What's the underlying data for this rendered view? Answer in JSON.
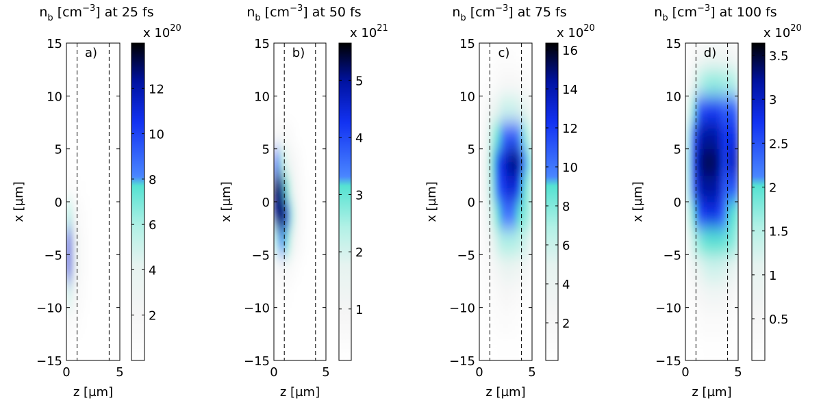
{
  "colormap": [
    [
      0,
      "#ffffff"
    ],
    [
      0.15,
      "#f5f5f5"
    ],
    [
      0.3,
      "#e6f3f0"
    ],
    [
      0.42,
      "#b2f1e6"
    ],
    [
      0.55,
      "#55e2d2"
    ],
    [
      0.58,
      "#4a86ff"
    ],
    [
      0.75,
      "#1232f2"
    ],
    [
      0.88,
      "#0012a0"
    ],
    [
      1,
      "#000000"
    ]
  ],
  "chart_data": [
    {
      "type": "heatmap",
      "title_parts": [
        "n",
        "b",
        " [cm",
        "−3",
        "] at 25 fs"
      ],
      "panel_label": "a)",
      "multiplier": {
        "base": "x 10",
        "exp": "20"
      },
      "xlabel": "z [µm]",
      "ylabel": "x [µm]",
      "xlim": [
        0,
        5
      ],
      "xticks": [
        0,
        5
      ],
      "ylim": [
        -15,
        15
      ],
      "yticks": [
        {
          "value": -15,
          "label": "−15"
        },
        {
          "value": -10,
          "label": "−10"
        },
        {
          "value": -5,
          "label": "−5"
        },
        0,
        5,
        10,
        15
      ],
      "vlines": [
        1,
        4
      ],
      "x": [
        0.25,
        0.75,
        1.25,
        1.75,
        2.25,
        2.75,
        3.25,
        3.75,
        4.25,
        4.75
      ],
      "y": [
        -13.75,
        -11.25,
        -8.75,
        -6.25,
        -3.75,
        -1.25,
        1.25,
        3.75,
        6.25,
        8.75,
        11.25,
        13.75
      ],
      "values": [
        [
          0.3,
          0.2,
          0.1,
          0,
          0,
          0,
          0,
          0,
          0,
          0
        ],
        [
          1.5,
          0.8,
          0.4,
          0.2,
          0.1,
          0,
          0,
          0,
          0,
          0
        ],
        [
          5,
          2,
          1,
          0.5,
          0.2,
          0.1,
          0,
          0,
          0,
          0
        ],
        [
          11,
          3.5,
          1.5,
          0.6,
          0.3,
          0.1,
          0,
          0,
          0,
          0
        ],
        [
          11,
          3.5,
          1.5,
          0.6,
          0.3,
          0.1,
          0,
          0,
          0,
          0
        ],
        [
          6,
          2,
          1,
          0.4,
          0.2,
          0.1,
          0,
          0,
          0,
          0
        ],
        [
          1,
          0.6,
          0.3,
          0.2,
          0.1,
          0,
          0,
          0,
          0,
          0
        ],
        [
          0.3,
          0.2,
          0.1,
          0,
          0,
          0,
          0,
          0,
          0,
          0
        ],
        [
          0,
          0,
          0,
          0,
          0,
          0,
          0,
          0,
          0,
          0
        ],
        [
          0,
          0,
          0,
          0,
          0,
          0,
          0,
          0,
          0,
          0
        ],
        [
          0,
          0,
          0,
          0,
          0,
          0,
          0,
          0,
          0,
          0
        ],
        [
          0,
          0,
          0,
          0,
          0,
          0,
          0,
          0,
          0,
          0
        ]
      ],
      "clim": [
        0,
        14
      ],
      "cticks": [
        2,
        4,
        6,
        8,
        10,
        12
      ]
    },
    {
      "type": "heatmap",
      "title_parts": [
        "n",
        "b",
        " [cm",
        "−3",
        "] at 50 fs"
      ],
      "panel_label": "b)",
      "multiplier": {
        "base": "x 10",
        "exp": "21"
      },
      "xlabel": "z [µm]",
      "ylabel": "x [µm]",
      "xlim": [
        0,
        5
      ],
      "xticks": [
        0,
        5
      ],
      "ylim": [
        -15,
        15
      ],
      "yticks": [
        {
          "value": -15,
          "label": "−15"
        },
        {
          "value": -10,
          "label": "−10"
        },
        {
          "value": -5,
          "label": "−5"
        },
        0,
        5,
        10,
        15
      ],
      "vlines": [
        1,
        4
      ],
      "x": [
        0.25,
        0.75,
        1.25,
        1.75,
        2.25,
        2.75,
        3.25,
        3.75,
        4.25,
        4.75
      ],
      "y": [
        -13.75,
        -11.25,
        -8.75,
        -6.25,
        -3.75,
        -1.25,
        1.25,
        3.75,
        6.25,
        8.75,
        11.25,
        13.75
      ],
      "values": [
        [
          0,
          0,
          0,
          0,
          0,
          0,
          0,
          0,
          0,
          0
        ],
        [
          0.1,
          0.1,
          0.1,
          0,
          0,
          0,
          0,
          0,
          0,
          0
        ],
        [
          0.3,
          0.3,
          0.3,
          0.2,
          0.1,
          0,
          0,
          0,
          0,
          0
        ],
        [
          0.8,
          0.8,
          0.7,
          0.5,
          0.3,
          0.2,
          0.1,
          0,
          0,
          0
        ],
        [
          2.5,
          3.5,
          3,
          1.5,
          0.8,
          0.4,
          0.2,
          0.1,
          0,
          0
        ],
        [
          5,
          5.5,
          4.5,
          2.5,
          1,
          0.5,
          0.2,
          0.1,
          0,
          0
        ],
        [
          5.5,
          5,
          3,
          1.5,
          0.8,
          0.4,
          0.2,
          0.1,
          0,
          0
        ],
        [
          4,
          2.5,
          1.5,
          1,
          0.6,
          0.3,
          0.1,
          0,
          0,
          0
        ],
        [
          0.8,
          0.7,
          0.6,
          0.4,
          0.2,
          0.1,
          0,
          0,
          0,
          0
        ],
        [
          0.2,
          0.2,
          0.1,
          0,
          0,
          0,
          0,
          0,
          0,
          0
        ],
        [
          0,
          0,
          0,
          0,
          0,
          0,
          0,
          0,
          0,
          0
        ],
        [
          0,
          0,
          0,
          0,
          0,
          0,
          0,
          0,
          0,
          0
        ]
      ],
      "clim": [
        0.1,
        5.65
      ],
      "cticks": [
        1,
        2,
        3,
        4,
        5
      ]
    },
    {
      "type": "heatmap",
      "title_parts": [
        "n",
        "b",
        " [cm",
        "−3",
        "] at 75 fs"
      ],
      "panel_label": "c)",
      "multiplier": {
        "base": "x 10",
        "exp": "20"
      },
      "xlabel": "z [µm]",
      "ylabel": "x [µm]",
      "xlim": [
        0,
        5
      ],
      "xticks": [
        0,
        5
      ],
      "ylim": [
        -15,
        15
      ],
      "yticks": [
        {
          "value": -15,
          "label": "−15"
        },
        {
          "value": -10,
          "label": "−10"
        },
        {
          "value": -5,
          "label": "−5"
        },
        0,
        5,
        10,
        15
      ],
      "vlines": [
        1,
        4
      ],
      "x": [
        0.25,
        0.75,
        1.25,
        1.75,
        2.25,
        2.75,
        3.25,
        3.75,
        4.25,
        4.75
      ],
      "y": [
        -13.75,
        -11.25,
        -8.75,
        -6.25,
        -3.75,
        -1.25,
        1.25,
        3.75,
        6.25,
        8.75,
        11.25,
        13.75
      ],
      "values": [
        [
          0,
          0,
          0,
          0.3,
          0.3,
          0.3,
          0.3,
          0.2,
          0,
          0
        ],
        [
          0,
          0.2,
          0.5,
          0.8,
          1,
          1,
          0.8,
          0.5,
          0.3,
          0.1
        ],
        [
          0.2,
          0.5,
          1,
          1.5,
          2,
          2,
          1.8,
          1.5,
          1,
          0.5
        ],
        [
          0.5,
          1,
          2,
          3,
          4,
          4.5,
          4,
          3.5,
          3,
          2
        ],
        [
          1,
          2,
          4,
          6,
          7,
          7,
          7,
          6.5,
          6,
          5
        ],
        [
          1.5,
          3,
          6,
          9,
          10,
          10,
          10,
          9,
          8,
          7
        ],
        [
          2,
          4,
          8,
          11,
          12,
          13,
          13,
          12,
          9,
          7
        ],
        [
          2,
          4,
          9,
          12,
          13,
          14,
          15,
          14,
          10,
          8
        ],
        [
          1.5,
          3,
          7,
          9,
          10,
          11,
          11,
          10,
          8,
          6
        ],
        [
          1,
          2,
          4,
          5,
          6,
          6,
          6,
          5.5,
          5,
          4
        ],
        [
          0.3,
          0.6,
          1,
          1.5,
          2,
          2,
          2,
          1.8,
          1.5,
          1
        ],
        [
          0,
          0.1,
          0.3,
          0.5,
          0.5,
          0.5,
          0.5,
          0.4,
          0.3,
          0.2
        ]
      ],
      "clim": [
        0.07,
        16.35
      ],
      "cticks": [
        2,
        4,
        6,
        8,
        10,
        12,
        14,
        16
      ]
    },
    {
      "type": "heatmap",
      "title_parts": [
        "n",
        "b",
        " [cm",
        "−3",
        "] at 100 fs"
      ],
      "panel_label": "d)",
      "multiplier": {
        "base": "x 10",
        "exp": "20"
      },
      "xlabel": "z [µm]",
      "ylabel": "x [µm]",
      "xlim": [
        0,
        5
      ],
      "xticks": [
        0,
        5
      ],
      "ylim": [
        -15,
        15
      ],
      "yticks": [
        {
          "value": -15,
          "label": "−15"
        },
        {
          "value": -10,
          "label": "−10"
        },
        {
          "value": -5,
          "label": "−5"
        },
        0,
        5,
        10,
        15
      ],
      "vlines": [
        1,
        4
      ],
      "x": [
        0.25,
        0.75,
        1.25,
        1.75,
        2.25,
        2.75,
        3.25,
        3.75,
        4.25,
        4.75
      ],
      "y": [
        -13.75,
        -11.25,
        -8.75,
        -6.25,
        -3.75,
        -1.25,
        1.25,
        3.75,
        6.25,
        8.75,
        11.25,
        13.75
      ],
      "values": [
        [
          0,
          0,
          0.05,
          0.1,
          0.1,
          0.1,
          0.1,
          0.1,
          0.05,
          0
        ],
        [
          0,
          0.1,
          0.2,
          0.3,
          0.3,
          0.3,
          0.3,
          0.3,
          0.2,
          0.1
        ],
        [
          0.2,
          0.3,
          0.5,
          0.6,
          0.7,
          0.7,
          0.7,
          0.6,
          0.5,
          0.4
        ],
        [
          0.4,
          0.8,
          1,
          1.2,
          1.3,
          1.3,
          1.3,
          1.2,
          1.1,
          1
        ],
        [
          0.8,
          1.4,
          1.7,
          1.9,
          2,
          2,
          2,
          1.9,
          1.8,
          1.7
        ],
        [
          1.2,
          2,
          2.5,
          2.7,
          2.8,
          2.8,
          2.6,
          2.2,
          2,
          2
        ],
        [
          1.5,
          2.4,
          3,
          3.2,
          3.2,
          3.2,
          3,
          2.4,
          2.5,
          2.5
        ],
        [
          1.6,
          2.6,
          3.2,
          3.4,
          3.4,
          3.4,
          3.2,
          2.6,
          3,
          3
        ],
        [
          1.5,
          2.4,
          3,
          3.2,
          3.2,
          3.2,
          3,
          2.7,
          2.8,
          2.8
        ],
        [
          1,
          1.8,
          2.4,
          2.6,
          2.7,
          2.7,
          2.6,
          2.4,
          2.5,
          2.4
        ],
        [
          0.5,
          1,
          1.4,
          1.6,
          1.7,
          1.7,
          1.7,
          1.6,
          1.6,
          1.5
        ],
        [
          0.2,
          0.4,
          0.6,
          0.7,
          0.8,
          0.8,
          0.8,
          0.7,
          0.7,
          0.6
        ]
      ],
      "clim": [
        0.025,
        3.64
      ],
      "cticks": [
        0.5,
        1,
        1.5,
        2,
        2.5,
        3,
        3.5
      ]
    }
  ]
}
